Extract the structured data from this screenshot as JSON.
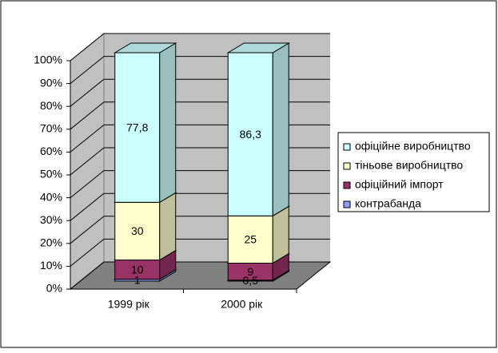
{
  "chart_data": {
    "type": "stacked-bar-100",
    "categories": [
      "1999 рік",
      "2000 рік"
    ],
    "series": [
      {
        "name": "контрабанда",
        "color": "#9999ff",
        "values": [
          1,
          0.5
        ],
        "value_labels": [
          "1",
          "0,5"
        ]
      },
      {
        "name": "офіційний імпорт",
        "color": "#993366",
        "values": [
          10,
          9
        ],
        "value_labels": [
          "10",
          "9"
        ]
      },
      {
        "name": "тіньове виробництво",
        "color": "#ffffcc",
        "values": [
          30,
          25
        ],
        "value_labels": [
          "30",
          "25"
        ]
      },
      {
        "name": "офіційне виробництво",
        "color": "#ccffff",
        "values": [
          77.8,
          86.3
        ],
        "value_labels": [
          "77,8",
          "86,3"
        ]
      }
    ],
    "ylim": [
      0,
      100
    ],
    "yticks": [
      {
        "value": 0,
        "label": "0%"
      },
      {
        "value": 10,
        "label": "10%"
      },
      {
        "value": 20,
        "label": "20%"
      },
      {
        "value": 30,
        "label": "30%"
      },
      {
        "value": 40,
        "label": "40%"
      },
      {
        "value": 50,
        "label": "50%"
      },
      {
        "value": 60,
        "label": "60%"
      },
      {
        "value": 70,
        "label": "70%"
      },
      {
        "value": 80,
        "label": "80%"
      },
      {
        "value": 90,
        "label": "90%"
      },
      {
        "value": 100,
        "label": "100%"
      }
    ],
    "grid": true,
    "legend": "right"
  }
}
